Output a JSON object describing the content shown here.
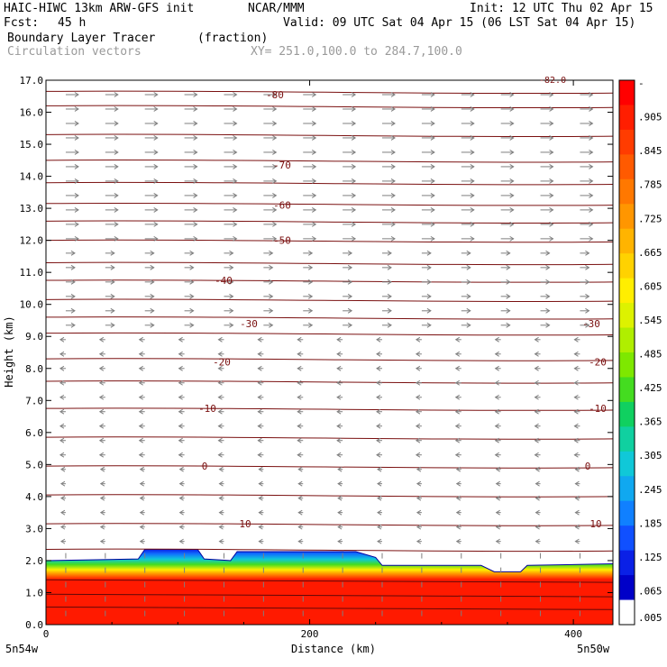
{
  "header": {
    "model": "HAIC-HIWC 13km ARW-GFS init",
    "org": "NCAR/MMM",
    "init": "Init: 12 UTC Thu 02 Apr 15",
    "fcst_label": "Fcst:",
    "fcst_value": "45 h",
    "valid": "Valid: 09 UTC Sat 04 Apr 15 (06 LST Sat 04 Apr 15)",
    "field": "Boundary Layer Tracer",
    "units": "(fraction)",
    "vectors": "Circulation vectors",
    "xy": "XY= 251.0,100.0 to 284.7,100.0"
  },
  "colors": {
    "contour": "#7a1010",
    "vector": "#7f7f7f",
    "fill_main": "#ff1a00"
  },
  "colorbar": {
    "labels": [
      "-",
      ".905",
      ".845",
      ".785",
      ".725",
      ".665",
      ".605",
      ".545",
      ".485",
      ".425",
      ".365",
      ".305",
      ".245",
      ".185",
      ".125",
      ".065",
      ".005"
    ],
    "colors": [
      "#ff0000",
      "#ff1e00",
      "#ff3c00",
      "#ff5a00",
      "#ff7800",
      "#ff9600",
      "#ffb400",
      "#ffd200",
      "#ffee00",
      "#ddf200",
      "#b0ee00",
      "#7ee800",
      "#44dc20",
      "#10d060",
      "#10d0a0",
      "#10c8d8",
      "#10a8f0",
      "#1080ff",
      "#1050ff",
      "#0a20e6",
      "#0000c8",
      "#ffffff"
    ]
  },
  "chart_data": {
    "type": "contour",
    "xlabel": "Distance (km)",
    "ylabel": "Height (km)",
    "xlim": [
      0,
      430
    ],
    "ylim": [
      0,
      17
    ],
    "xticks": [
      "0",
      "200",
      "400"
    ],
    "xtick_values": [
      0,
      200,
      400
    ],
    "yticks": [
      "0.0",
      "1.0",
      "2.0",
      "3.0",
      "4.0",
      "5.0",
      "6.0",
      "7.0",
      "8.0",
      "9.0",
      "10.0",
      "11.0",
      "12.0",
      "13.0",
      "14.0",
      "15.0",
      "16.0",
      "17.0"
    ],
    "ytick_values": [
      0,
      1,
      2,
      3,
      4,
      5,
      6,
      7,
      8,
      9,
      10,
      11,
      12,
      13,
      14,
      15,
      16,
      17
    ],
    "left_location": "5n54w",
    "right_location": "5n50w",
    "corner_label": "-82.0",
    "temperature_contours": [
      {
        "label": "-80",
        "height": 16.55
      },
      {
        "label": "-70",
        "height": 14.35
      },
      {
        "label": "-60",
        "height": 13.1
      },
      {
        "label": "-50",
        "height": 12.0
      },
      {
        "label": "-40",
        "height": 10.75
      },
      {
        "label": "-30",
        "height": 9.4
      },
      {
        "label": "-20",
        "height": 8.2
      },
      {
        "label": "-10",
        "height": 6.75
      },
      {
        "label": "0",
        "height": 4.95
      },
      {
        "label": "10",
        "height": 3.15
      }
    ],
    "boundary_layer_top": [
      [
        0,
        2.0
      ],
      [
        70,
        2.05
      ],
      [
        75,
        2.35
      ],
      [
        115,
        2.35
      ],
      [
        120,
        2.05
      ],
      [
        140,
        2.0
      ],
      [
        145,
        2.28
      ],
      [
        235,
        2.28
      ],
      [
        250,
        2.1
      ],
      [
        255,
        1.85
      ],
      [
        330,
        1.85
      ],
      [
        340,
        1.65
      ],
      [
        360,
        1.65
      ],
      [
        365,
        1.85
      ],
      [
        430,
        1.9
      ]
    ]
  }
}
